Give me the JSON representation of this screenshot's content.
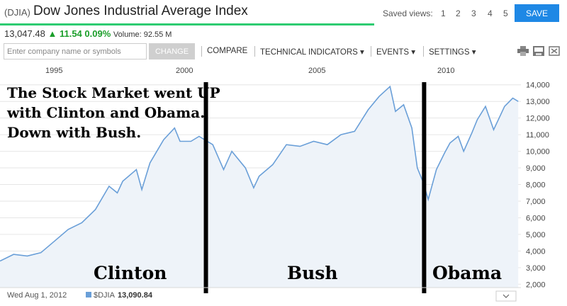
{
  "header": {
    "ticker": "(DJIA)",
    "title": "Dow Jones Industrial Average Index",
    "saved_views_label": "Saved views:",
    "saved_views": [
      "1",
      "2",
      "3",
      "4",
      "5"
    ],
    "save_label": "SAVE"
  },
  "quote": {
    "price": "13,047.48",
    "change": "11.54",
    "change_pct": "0.09%",
    "volume": "Volume: 92.55 M"
  },
  "toolbar": {
    "search_placeholder": "Enter company name or symbols",
    "change_label": "CHANGE",
    "menu": [
      "COMPARE",
      "TECHNICAL INDICATORS",
      "EVENTS",
      "SETTINGS"
    ]
  },
  "annotations": {
    "headline": [
      "The Stock Market went UP",
      "with Clinton and Obama.",
      "Down with Bush."
    ],
    "eras": [
      "Clinton",
      "Bush",
      "Obama"
    ]
  },
  "footer": {
    "date": "Wed Aug 1, 2012",
    "series": "$DJIA",
    "value": "13,090.84"
  },
  "colors": {
    "line": "#6a9fd8",
    "area": "#eef3f9",
    "accent": "#1e88e5",
    "up": "#1b9e2a"
  },
  "chart_data": {
    "type": "area",
    "series": [
      {
        "name": "$DJIA",
        "x": [
          1993.5,
          1994.0,
          1994.5,
          1995.0,
          1995.5,
          1996.0,
          1996.5,
          1997.0,
          1997.5,
          1997.8,
          1998.0,
          1998.5,
          1998.7,
          1999.0,
          1999.5,
          1999.9,
          2000.1,
          2000.5,
          2000.8,
          2001.0,
          2001.3,
          2001.7,
          2002.0,
          2002.5,
          2002.8,
          2003.0,
          2003.5,
          2004.0,
          2004.5,
          2005.0,
          2005.5,
          2006.0,
          2006.5,
          2007.0,
          2007.4,
          2007.8,
          2008.0,
          2008.3,
          2008.6,
          2008.8,
          2009.0,
          2009.2,
          2009.5,
          2009.8,
          2010.0,
          2010.3,
          2010.5,
          2010.8,
          2011.0,
          2011.3,
          2011.6,
          2011.8,
          2012.0,
          2012.3,
          2012.5
        ],
        "values": [
          3400,
          3800,
          3700,
          3900,
          4600,
          5300,
          5700,
          6500,
          7900,
          7500,
          8200,
          8900,
          7700,
          9300,
          10700,
          11400,
          10600,
          10600,
          10900,
          10700,
          10400,
          8900,
          10000,
          9000,
          7800,
          8500,
          9200,
          10400,
          10300,
          10600,
          10400,
          11000,
          11200,
          12500,
          13300,
          13900,
          12400,
          12800,
          11400,
          9000,
          8200,
          7100,
          8900,
          9900,
          10500,
          10900,
          10000,
          11100,
          11900,
          12700,
          11300,
          12000,
          12700,
          13200,
          13000
        ]
      }
    ],
    "xlabel": "",
    "ylabel": "",
    "x_ticks": [
      "1995",
      "2000",
      "2005",
      "2010"
    ],
    "y_ticks": [
      "2,000",
      "3,000",
      "4,000",
      "5,000",
      "6,000",
      "7,000",
      "8,000",
      "9,000",
      "10,000",
      "11,000",
      "12,000",
      "13,000",
      "14,000"
    ],
    "xlim": [
      1993.5,
      2012.6
    ],
    "ylim": [
      1800,
      14500
    ],
    "grid": true,
    "era_dividers_x": [
      2001.05,
      2009.05
    ]
  }
}
